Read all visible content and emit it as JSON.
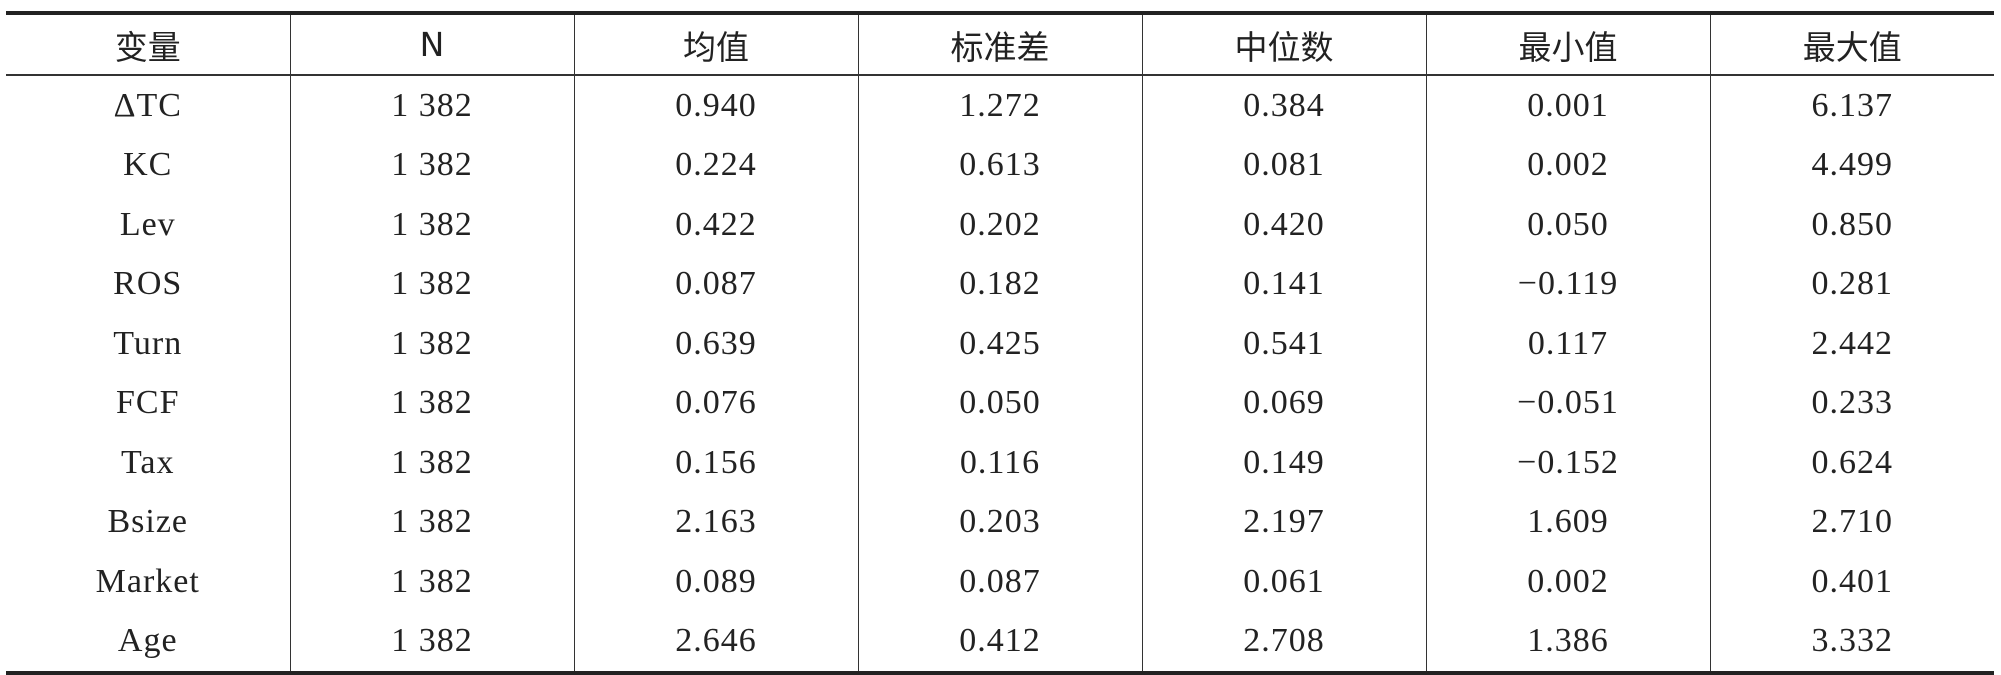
{
  "table": {
    "header": [
      "变量",
      "N",
      "均值",
      "标准差",
      "中位数",
      "最小值",
      "最大值"
    ],
    "rows": [
      [
        "ΔTC",
        "1 382",
        "0.940",
        "1.272",
        "0.384",
        "0.001",
        "6.137"
      ],
      [
        "KC",
        "1 382",
        "0.224",
        "0.613",
        "0.081",
        "0.002",
        "4.499"
      ],
      [
        "Lev",
        "1 382",
        "0.422",
        "0.202",
        "0.420",
        "0.050",
        "0.850"
      ],
      [
        "ROS",
        "1 382",
        "0.087",
        "0.182",
        "0.141",
        "−0.119",
        "0.281"
      ],
      [
        "Turn",
        "1 382",
        "0.639",
        "0.425",
        "0.541",
        "0.117",
        "2.442"
      ],
      [
        "FCF",
        "1 382",
        "0.076",
        "0.050",
        "0.069",
        "−0.051",
        "0.233"
      ],
      [
        "Tax",
        "1 382",
        "0.156",
        "0.116",
        "0.149",
        "−0.152",
        "0.624"
      ],
      [
        "Bsize",
        "1 382",
        "2.163",
        "0.203",
        "2.197",
        "1.609",
        "2.710"
      ],
      [
        "Market",
        "1 382",
        "0.089",
        "0.087",
        "0.061",
        "0.002",
        "0.401"
      ],
      [
        "Age",
        "1 382",
        "2.646",
        "0.412",
        "2.708",
        "1.386",
        "3.332"
      ]
    ]
  }
}
